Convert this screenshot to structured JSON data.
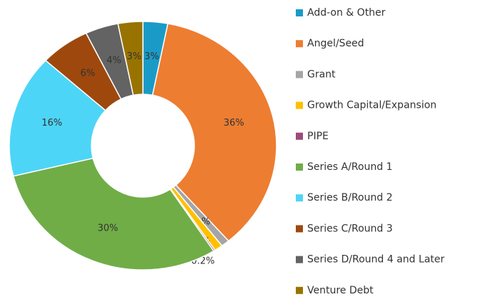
{
  "chart_data": {
    "type": "donut",
    "categories": [
      "Add-on & Other",
      "Angel/Seed",
      "Grant",
      "Growth Capital/Expansion",
      "PIPE",
      "Series A/Round 1",
      "Series B/Round 2",
      "Series C/Round 3",
      "Series D/Round 4 and Later",
      "Venture Debt"
    ],
    "values": [
      3,
      36,
      1,
      1,
      0.2,
      30,
      16,
      6,
      4,
      3
    ],
    "value_labels": [
      "3%",
      "36%",
      "1%",
      "1%",
      "0.2%",
      "30%",
      "16%",
      "6%",
      "4%",
      "3%"
    ],
    "colors": [
      "#1a9bc7",
      "#ed7d31",
      "#a5a5a5",
      "#ffc000",
      "#9e4a7a",
      "#70ad47",
      "#4dd5f7",
      "#9e480e",
      "#636363",
      "#997300"
    ],
    "legend": "right"
  }
}
